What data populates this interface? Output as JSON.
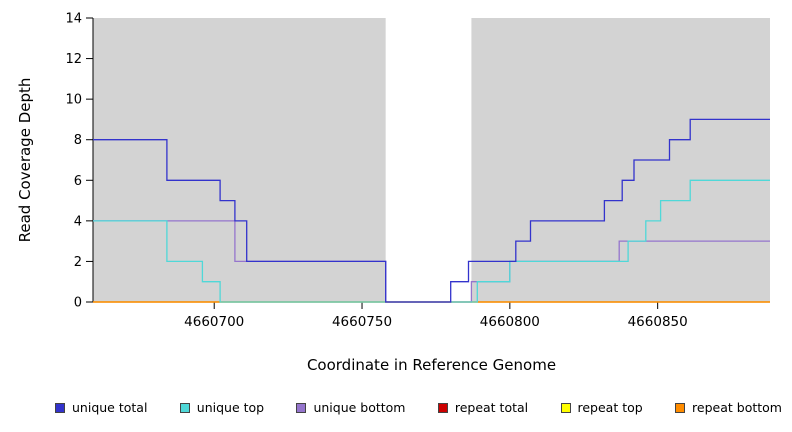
{
  "chart_data": {
    "type": "line",
    "variant": "step",
    "title": "",
    "xlabel": "Coordinate in Reference Genome",
    "ylabel": "Read Coverage Depth",
    "xlim": [
      4660659,
      4660888
    ],
    "ylim": [
      0,
      14
    ],
    "xticks": [
      4660700,
      4660750,
      4660800,
      4660850
    ],
    "yticks": [
      0,
      2,
      4,
      6,
      8,
      10,
      12,
      14
    ],
    "grid": false,
    "legend_position": "bottom",
    "plot_background": "#d3d3d3",
    "page_background": "#ffffff",
    "axis_color": "#000000",
    "masked_region": {
      "x_start": 4660758,
      "x_end": 4660787,
      "color": "#ffffff"
    },
    "series": [
      {
        "name": "repeat total",
        "color": "#cc0000",
        "points": [
          [
            4660659,
            0
          ],
          [
            4660888,
            0
          ]
        ]
      },
      {
        "name": "repeat top",
        "color": "#ffff00",
        "points": [
          [
            4660659,
            0
          ],
          [
            4660888,
            0
          ]
        ]
      },
      {
        "name": "repeat bottom",
        "color": "#ff8c00",
        "points": [
          [
            4660659,
            0
          ],
          [
            4660888,
            0
          ]
        ]
      },
      {
        "name": "unique bottom",
        "color": "#9575cd",
        "points": [
          [
            4660659,
            4
          ],
          [
            4660707,
            4
          ],
          [
            4660707,
            2
          ],
          [
            4660758,
            2
          ],
          [
            4660758,
            0
          ],
          [
            4660787,
            0
          ],
          [
            4660787,
            1
          ],
          [
            4660800,
            1
          ],
          [
            4660800,
            2
          ],
          [
            4660837,
            2
          ],
          [
            4660837,
            3
          ],
          [
            4660888,
            3
          ]
        ]
      },
      {
        "name": "unique top",
        "color": "#4fd8d8",
        "points": [
          [
            4660659,
            4
          ],
          [
            4660684,
            4
          ],
          [
            4660684,
            2
          ],
          [
            4660696,
            2
          ],
          [
            4660696,
            1
          ],
          [
            4660702,
            1
          ],
          [
            4660702,
            0
          ],
          [
            4660789,
            0
          ],
          [
            4660789,
            1
          ],
          [
            4660800,
            1
          ],
          [
            4660800,
            2
          ],
          [
            4660840,
            2
          ],
          [
            4660840,
            3
          ],
          [
            4660846,
            3
          ],
          [
            4660846,
            4
          ],
          [
            4660851,
            4
          ],
          [
            4660851,
            5
          ],
          [
            4660861,
            5
          ],
          [
            4660861,
            6
          ],
          [
            4660888,
            6
          ]
        ]
      },
      {
        "name": "unique total",
        "color": "#3333cc",
        "points": [
          [
            4660659,
            8
          ],
          [
            4660684,
            8
          ],
          [
            4660684,
            6
          ],
          [
            4660702,
            6
          ],
          [
            4660702,
            5
          ],
          [
            4660707,
            5
          ],
          [
            4660707,
            4
          ],
          [
            4660711,
            4
          ],
          [
            4660711,
            2
          ],
          [
            4660758,
            2
          ],
          [
            4660758,
            0
          ],
          [
            4660780,
            0
          ],
          [
            4660780,
            1
          ],
          [
            4660786,
            1
          ],
          [
            4660786,
            2
          ],
          [
            4660802,
            2
          ],
          [
            4660802,
            3
          ],
          [
            4660807,
            3
          ],
          [
            4660807,
            4
          ],
          [
            4660832,
            4
          ],
          [
            4660832,
            5
          ],
          [
            4660838,
            5
          ],
          [
            4660838,
            6
          ],
          [
            4660842,
            6
          ],
          [
            4660842,
            7
          ],
          [
            4660854,
            7
          ],
          [
            4660854,
            8
          ],
          [
            4660861,
            8
          ],
          [
            4660861,
            9
          ],
          [
            4660888,
            9
          ]
        ]
      }
    ],
    "legend": [
      {
        "label": "unique total",
        "color": "#3333cc"
      },
      {
        "label": "unique top",
        "color": "#4fd8d8"
      },
      {
        "label": "unique bottom",
        "color": "#9575cd"
      },
      {
        "label": "repeat total",
        "color": "#cc0000"
      },
      {
        "label": "repeat top",
        "color": "#ffff00"
      },
      {
        "label": "repeat bottom",
        "color": "#ff8c00"
      }
    ]
  }
}
